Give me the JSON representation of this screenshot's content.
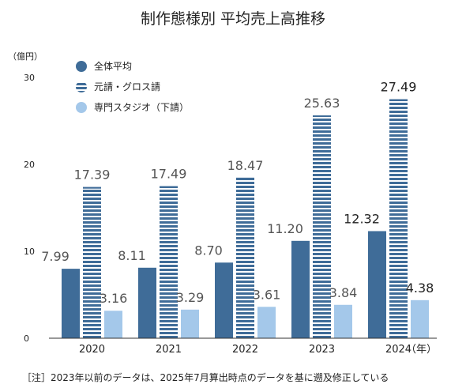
{
  "chart_data": {
    "type": "bar",
    "title": "制作態様別 平均売上高推移",
    "yunit": "（億円）",
    "xunit": "（年）",
    "categories": [
      "2020",
      "2021",
      "2022",
      "2023",
      "2024"
    ],
    "ylim": [
      0,
      30
    ],
    "yticks": [
      "0",
      "10",
      "20",
      "30"
    ],
    "series": [
      {
        "name": "全体平均",
        "values": [
          7.99,
          8.11,
          8.7,
          11.2,
          12.32
        ],
        "labels": [
          "7.99",
          "8.11",
          "8.70",
          "11.20",
          "12.32"
        ],
        "color": "#3f6c98",
        "pattern": "solid"
      },
      {
        "name": "元請・グロス請",
        "values": [
          17.39,
          17.49,
          18.47,
          25.63,
          27.49
        ],
        "labels": [
          "17.39",
          "17.49",
          "18.47",
          "25.63",
          "27.49"
        ],
        "color": "#3f6c98",
        "pattern": "striped"
      },
      {
        "name": "専門スタジオ（下請）",
        "values": [
          3.16,
          3.29,
          3.61,
          3.84,
          4.38
        ],
        "labels": [
          "3.16",
          "3.29",
          "3.61",
          "3.84",
          "4.38"
        ],
        "color": "#a4c8ea",
        "pattern": "solid"
      }
    ],
    "legend_position": "top-left",
    "grid": false,
    "note": "［注］2023年以前のデータは、2025年7月算出時点のデータを基に遡及修正している"
  }
}
